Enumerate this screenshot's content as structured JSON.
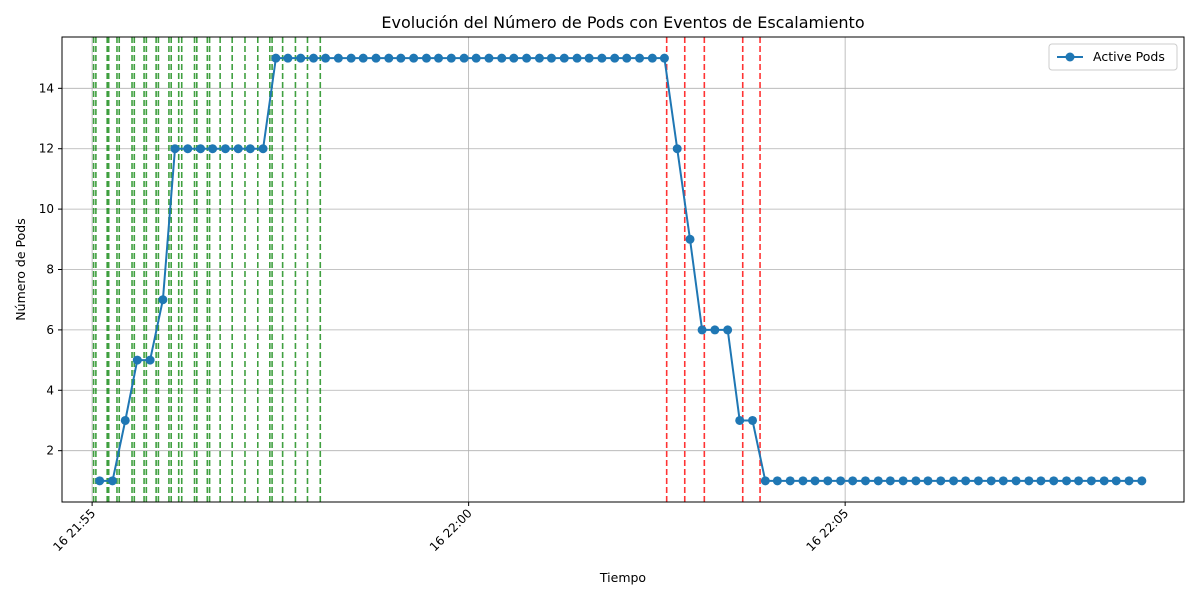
{
  "chart_data": {
    "type": "line",
    "title": "Evolución del Número de Pods con Eventos de Escalamiento",
    "xlabel": "Tiempo",
    "ylabel": "Número de Pods",
    "xlim_min": [
      -0.4,
      14.5
    ],
    "ylim": [
      0.3,
      15.7
    ],
    "yticks": [
      2,
      4,
      6,
      8,
      10,
      12,
      14
    ],
    "xticks": [
      {
        "value": 0,
        "label": "16 21:55"
      },
      {
        "value": 5,
        "label": "16 22:00"
      },
      {
        "value": 10,
        "label": "16 22:05"
      }
    ],
    "grid": true,
    "legend_position": "upper-right",
    "colors": {
      "series": "#1f77b4",
      "scale_up": "#008000",
      "scale_down": "#ff0000",
      "grid": "#b0b0b0"
    },
    "series": [
      {
        "name": "Active Pods",
        "x": [
          0.1,
          0.27,
          0.44,
          0.6,
          0.77,
          0.94,
          1.1,
          1.27,
          1.44,
          1.6,
          1.77,
          1.94,
          2.1,
          2.27,
          2.44,
          2.6,
          2.77,
          2.94,
          3.1,
          3.27,
          3.44,
          3.6,
          3.77,
          3.94,
          4.1,
          4.27,
          4.44,
          4.6,
          4.77,
          4.94,
          5.1,
          5.27,
          5.44,
          5.6,
          5.77,
          5.94,
          6.1,
          6.27,
          6.44,
          6.6,
          6.77,
          6.94,
          7.1,
          7.27,
          7.44,
          7.6,
          7.77,
          7.94,
          8.1,
          8.27,
          8.44,
          8.6,
          8.77,
          8.94,
          9.1,
          9.27,
          9.44,
          9.6,
          9.77,
          9.94,
          10.1,
          10.27,
          10.44,
          10.6,
          10.77,
          10.94,
          11.1,
          11.27,
          11.44,
          11.6,
          11.77,
          11.94,
          12.1,
          12.27,
          12.44,
          12.6,
          12.77,
          12.94,
          13.1,
          13.27,
          13.44,
          13.6,
          13.77,
          13.94
        ],
        "values": [
          1,
          1,
          3,
          5,
          5,
          7,
          12,
          12,
          12,
          12,
          12,
          12,
          12,
          12,
          15,
          15,
          15,
          15,
          15,
          15,
          15,
          15,
          15,
          15,
          15,
          15,
          15,
          15,
          15,
          15,
          15,
          15,
          15,
          15,
          15,
          15,
          15,
          15,
          15,
          15,
          15,
          15,
          15,
          15,
          15,
          15,
          12,
          9,
          6,
          6,
          6,
          3,
          3,
          1,
          1,
          1,
          1,
          1,
          1,
          1,
          1,
          1,
          1,
          1,
          1,
          1,
          1,
          1,
          1,
          1,
          1,
          1,
          1,
          1,
          1,
          1,
          1,
          1,
          1,
          1,
          1,
          1,
          1,
          1
        ]
      }
    ],
    "events": {
      "scale_up": [
        0.02,
        0.05,
        0.2,
        0.22,
        0.33,
        0.36,
        0.53,
        0.56,
        0.69,
        0.72,
        0.85,
        0.88,
        1.02,
        1.05,
        1.15,
        1.19,
        1.36,
        1.39,
        1.53,
        1.56,
        1.7,
        1.86,
        2.03,
        2.2,
        2.36,
        2.39,
        2.53,
        2.7,
        2.86,
        3.03
      ],
      "scale_down": [
        7.63,
        7.87,
        8.13,
        8.64,
        8.87
      ]
    }
  }
}
